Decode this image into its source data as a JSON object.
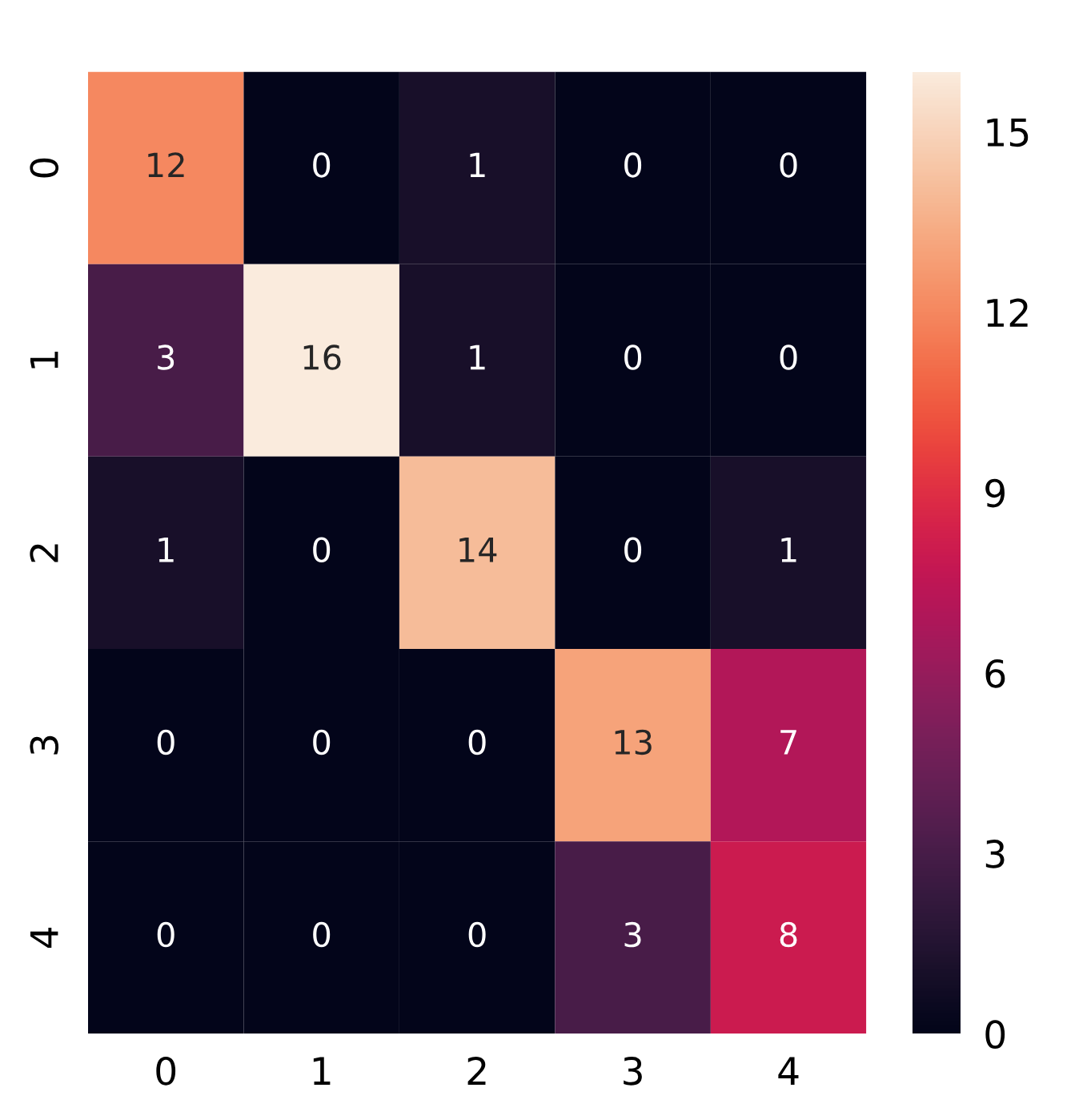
{
  "chart_data": {
    "type": "heatmap",
    "categories": [
      "0",
      "1",
      "2",
      "3",
      "4"
    ],
    "y_categories": [
      "0",
      "1",
      "2",
      "3",
      "4"
    ],
    "cells": [
      [
        12,
        0,
        1,
        0,
        0
      ],
      [
        3,
        16,
        1,
        0,
        0
      ],
      [
        1,
        0,
        14,
        0,
        1
      ],
      [
        0,
        0,
        0,
        13,
        7
      ],
      [
        0,
        0,
        0,
        3,
        8
      ]
    ],
    "clim": [
      0,
      16
    ],
    "cticks": [
      0,
      3,
      6,
      9,
      12,
      15
    ],
    "data_labels": true,
    "grid": false
  }
}
